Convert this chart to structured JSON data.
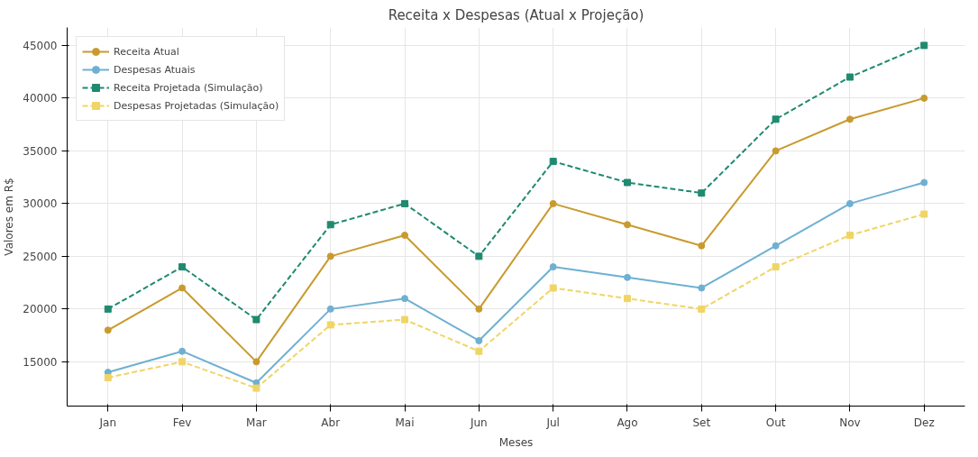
{
  "chart_data": {
    "type": "line",
    "title": "Receita x Despesas (Atual x Projeção)",
    "xlabel": "Meses",
    "ylabel": "Valores em R$",
    "categories": [
      "Jan",
      "Fev",
      "Mar",
      "Abr",
      "Mai",
      "Jun",
      "Jul",
      "Ago",
      "Set",
      "Out",
      "Nov",
      "Dez"
    ],
    "series": [
      {
        "name": "Receita Atual",
        "color": "#c99a2e",
        "marker": "circle",
        "line_style": "solid",
        "values": [
          18000,
          22000,
          15000,
          25000,
          27000,
          20000,
          30000,
          28000,
          26000,
          35000,
          38000,
          40000
        ]
      },
      {
        "name": "Despesas Atuais",
        "color": "#6fb0d2",
        "marker": "circle",
        "line_style": "solid",
        "values": [
          14000,
          16000,
          13000,
          20000,
          21000,
          17000,
          24000,
          23000,
          22000,
          26000,
          30000,
          32000
        ]
      },
      {
        "name": "Receita Projetada (Simulação)",
        "color": "#1f8a70",
        "marker": "square",
        "line_style": "dashed",
        "values": [
          20000,
          24000,
          19000,
          28000,
          30000,
          25000,
          34000,
          32000,
          31000,
          38000,
          42000,
          45000
        ]
      },
      {
        "name": "Despesas Projetadas (Simulação)",
        "color": "#f0d565",
        "marker": "square",
        "line_style": "dashed",
        "values": [
          13500,
          15000,
          12500,
          18500,
          19000,
          16000,
          22000,
          21000,
          20000,
          24000,
          27000,
          29000
        ]
      }
    ],
    "ylim": [
      10800,
      46700
    ],
    "yticks": [
      15000,
      20000,
      25000,
      30000,
      35000,
      40000,
      45000
    ],
    "grid": true,
    "legend": "top left"
  }
}
